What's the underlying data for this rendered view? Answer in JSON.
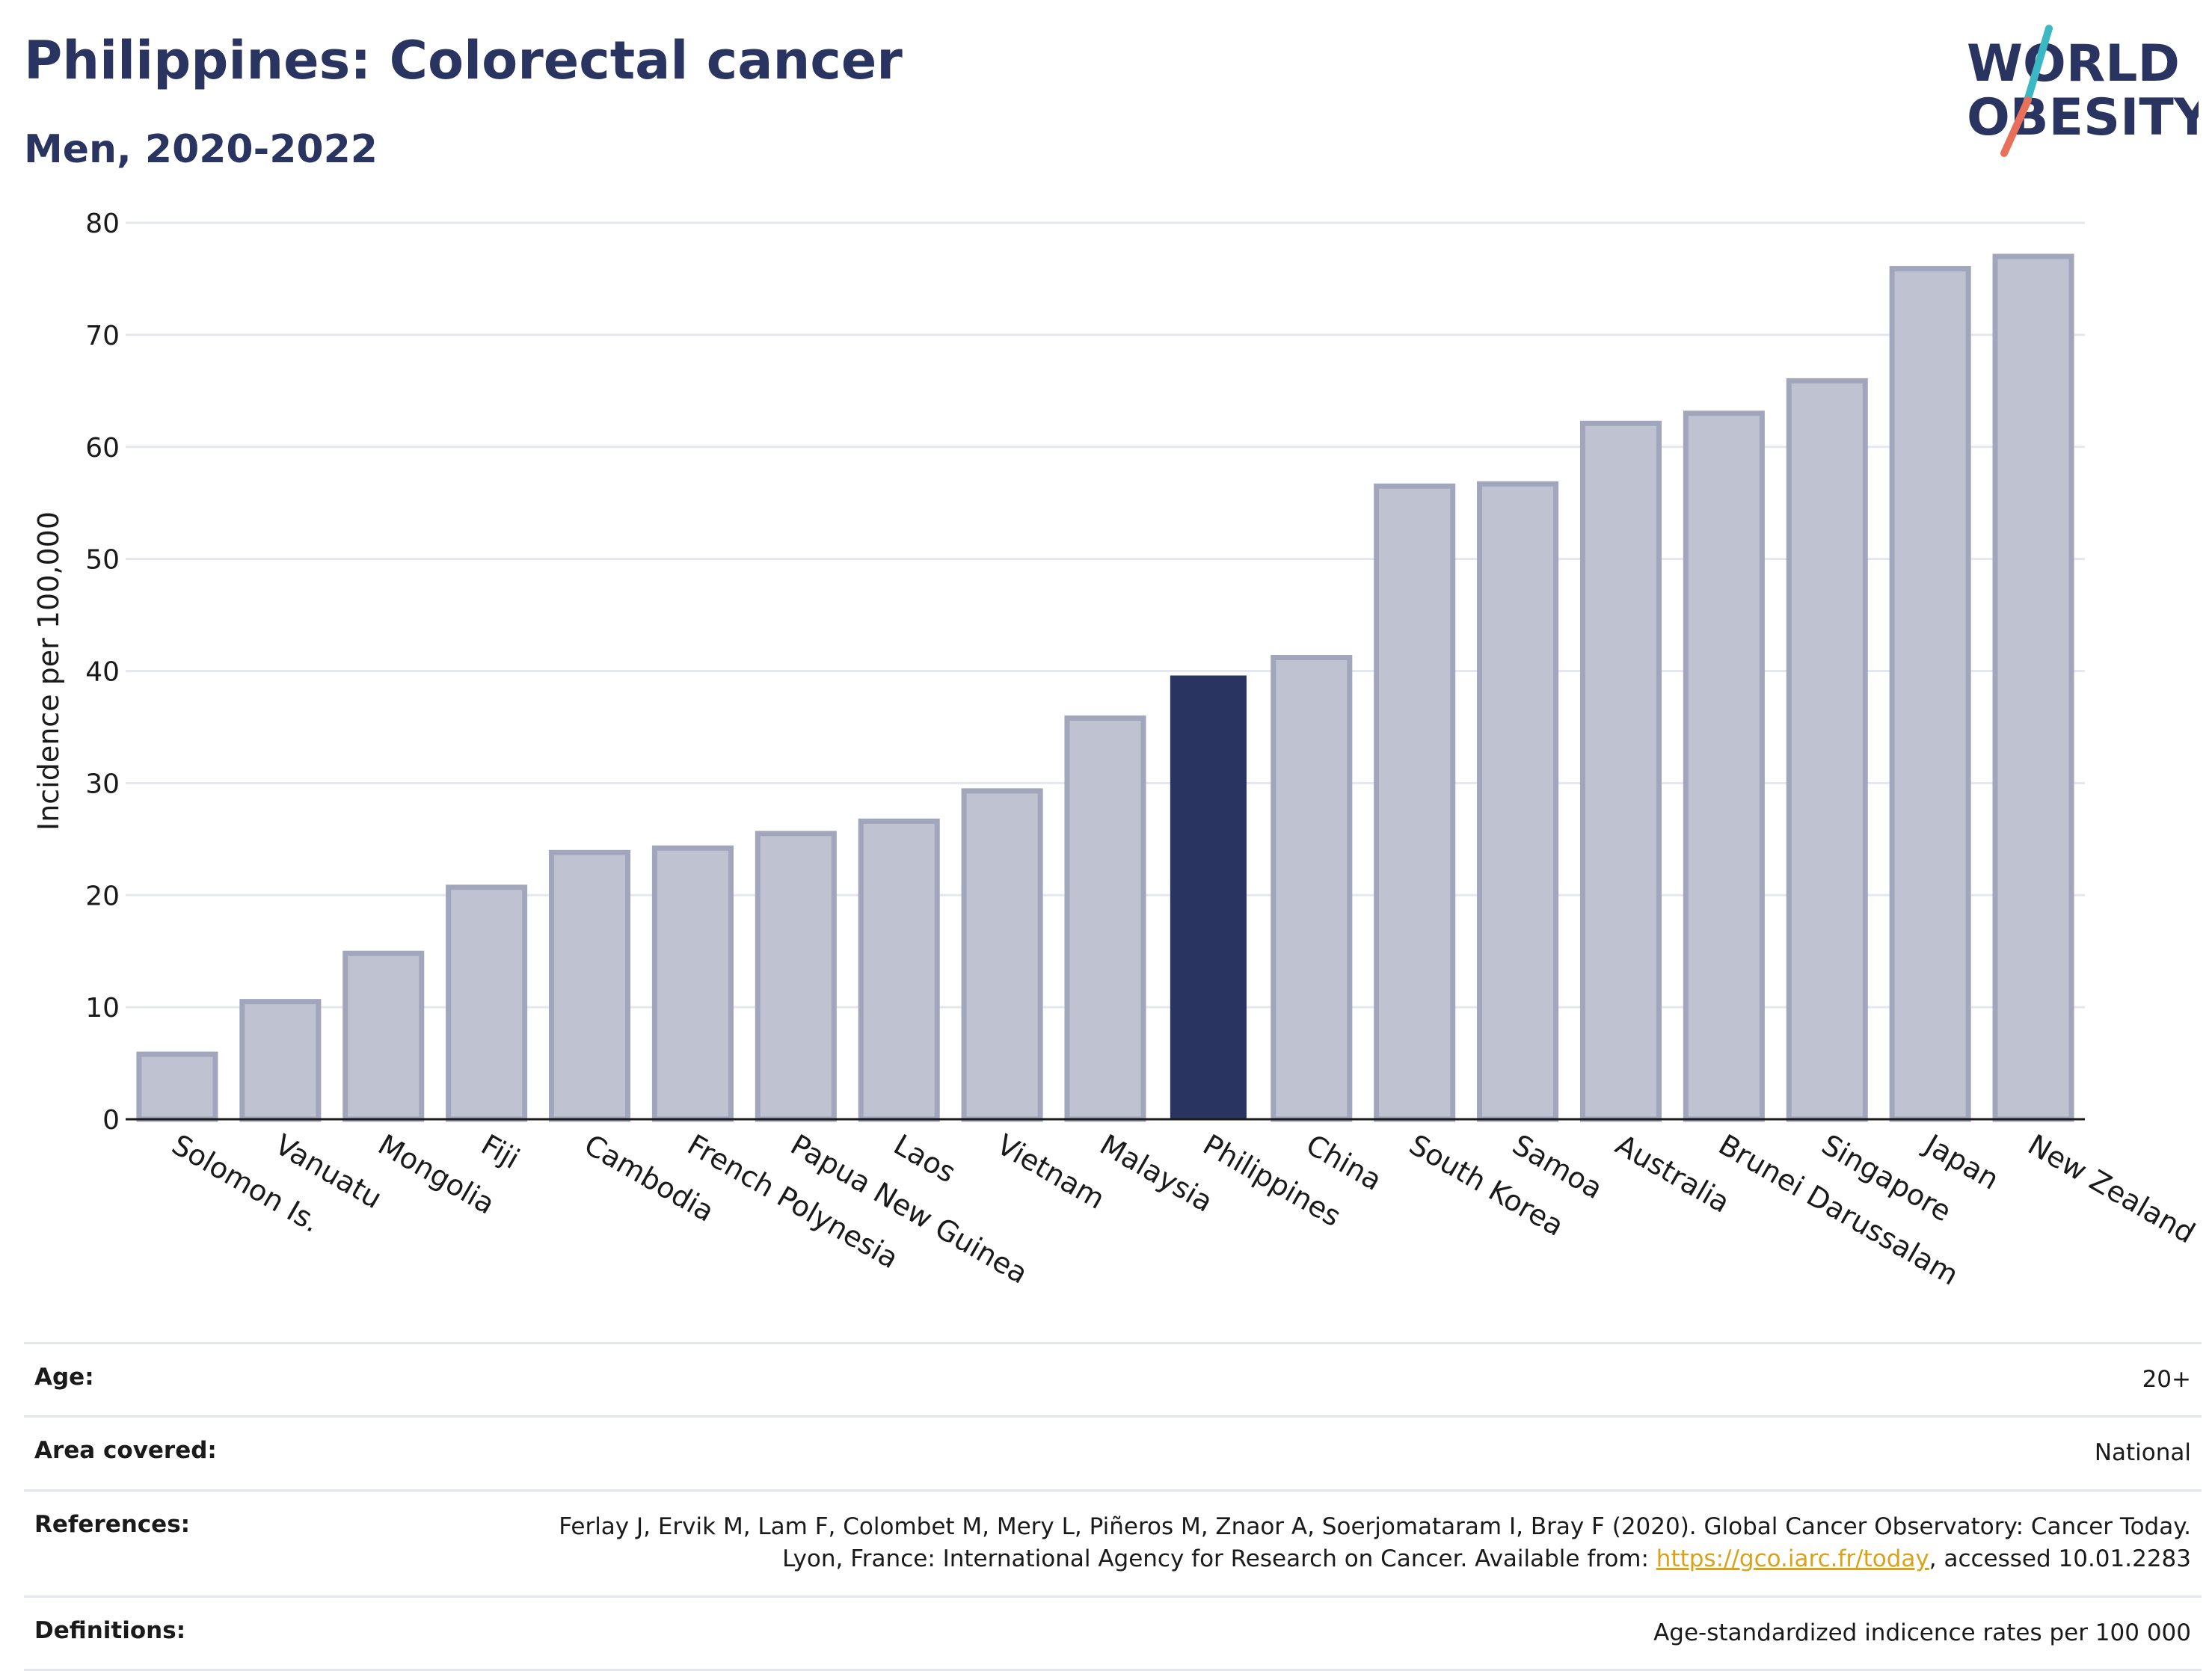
{
  "header": {
    "title": "Philippines: Colorectal cancer",
    "subtitle": "Men, 2020-2022"
  },
  "logo": {
    "line1": "WORLD",
    "line2": "OBESITY"
  },
  "colors": {
    "highlight": "#2a3461",
    "bar_fill": "#bfc2d0",
    "bar_stroke": "#a1a6bc",
    "grid": "#e5e7ee",
    "logo_text": "#2a3461",
    "logo_slash_top": "#3bb8c4",
    "logo_slash_bottom": "#e8705a"
  },
  "chart_data": {
    "type": "bar",
    "categories": [
      "Solomon Is.",
      "Vanuatu",
      "Mongolia",
      "Fiji",
      "Cambodia",
      "French Polynesia",
      "Papua New Guinea",
      "Laos",
      "Vietnam",
      "Malaysia",
      "Philippines",
      "China",
      "South Korea",
      "Samoa",
      "Australia",
      "Brunei Darussalam",
      "Singapore",
      "Japan",
      "New Zealand"
    ],
    "values": [
      5.8,
      10.5,
      14.8,
      20.7,
      23.8,
      24.2,
      25.5,
      26.6,
      29.3,
      35.8,
      39.6,
      41.2,
      56.5,
      56.7,
      62.1,
      63.0,
      65.9,
      75.9,
      77.0
    ],
    "highlight": "Philippines",
    "ylabel": "Incidence per 100,000",
    "xlabel": "",
    "ylim": [
      0,
      80
    ],
    "yticks": [
      0,
      10,
      20,
      30,
      40,
      50,
      60,
      70,
      80
    ],
    "grid": true,
    "legend": "none"
  },
  "meta": {
    "rows": [
      {
        "label": "Age:",
        "value": "20+"
      },
      {
        "label": "Area covered:",
        "value": "National"
      },
      {
        "label": "References:",
        "value_pre": "Ferlay J, Ervik M, Lam F, Colombet M, Mery L, Piñeros M, Znaor A, Soerjomataram I, Bray F (2020). Global Cancer Observatory: Cancer Today. Lyon, France: International Agency for Research on Cancer. Available from: ",
        "link": "https://gco.iarc.fr/today",
        "value_post": ", accessed 10.01.2283"
      },
      {
        "label": "Definitions:",
        "value": "Age-standardized indicence rates per 100 000"
      }
    ]
  }
}
